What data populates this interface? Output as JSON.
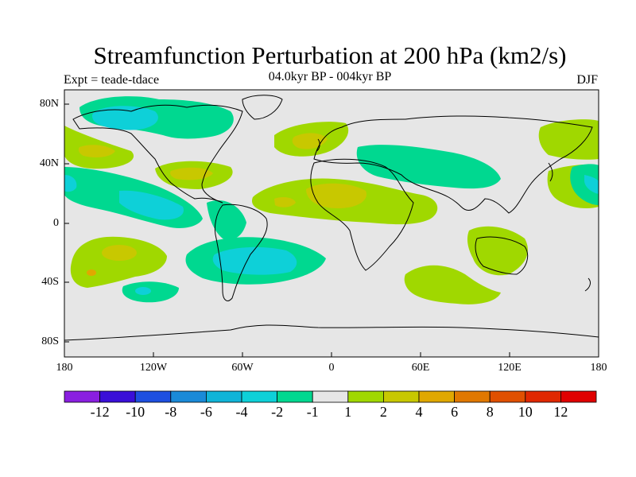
{
  "header": {
    "title": "Streamfunction Perturbation at 200 hPa (km2/s)",
    "left_label": "Expt = teade-tdace",
    "center_label": "04.0kyr BP - 004kyr BP",
    "right_label": "DJF"
  },
  "axes": {
    "y_ticks": [
      "80N",
      "40N",
      "0",
      "40S",
      "80S"
    ],
    "x_ticks": [
      "180",
      "120W",
      "60W",
      "0",
      "60E",
      "120E",
      "180"
    ]
  },
  "colorbar": {
    "labels": [
      "-12",
      "-10",
      "-8",
      "-6",
      "-4",
      "-2",
      "-1",
      "1",
      "2",
      "4",
      "6",
      "8",
      "10",
      "12"
    ],
    "colors": [
      "#8a1fe0",
      "#3a0fd8",
      "#1e4fe0",
      "#1a8ad8",
      "#10b4d8",
      "#0ed0d8",
      "#00d890",
      "#e6e6e6",
      "#a0d800",
      "#c8c800",
      "#e0a800",
      "#e07800",
      "#e05000",
      "#e02800",
      "#e00000"
    ]
  },
  "colors": {
    "neutral": "#e6e6e6",
    "pos1": "#a0d800",
    "pos2": "#c8c800",
    "neg1": "#00d890",
    "neg2": "#0ed0d8",
    "neg3": "#10b4d8"
  }
}
